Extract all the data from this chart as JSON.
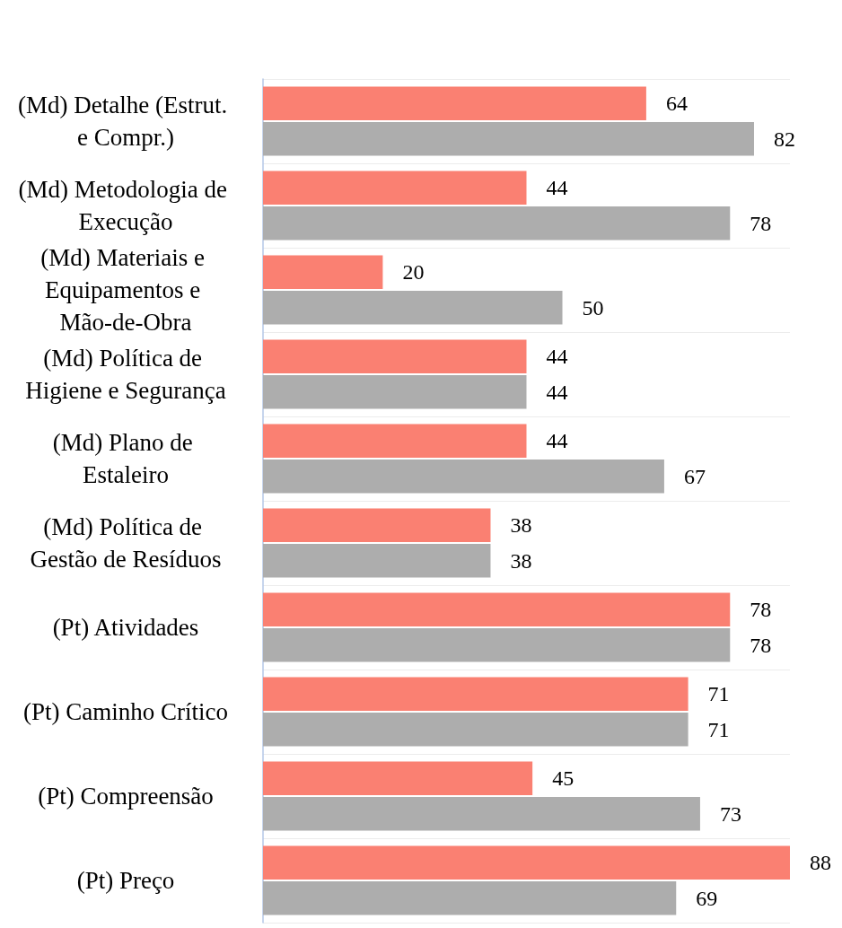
{
  "chart_data": {
    "type": "bar",
    "orientation": "horizontal",
    "categories": [
      "(Md) Detalhe (Estrut. e Compr.)",
      "(Md) Metodologia de Execução",
      "(Md) Materiais e Equipamentos e Mão-de-Obra",
      "(Md) Política de Higiene e Segurança",
      "(Md) Plano de Estaleiro",
      "(Md) Política de Gestão de Resíduos",
      "(Pt) Atividades",
      "(Pt) Caminho Crítico",
      "(Pt) Compreensão",
      "(Pt) Preço"
    ],
    "series": [
      {
        "color": "#fa8072",
        "values": [
          64,
          44,
          20,
          44,
          44,
          38,
          78,
          71,
          45,
          88
        ]
      },
      {
        "color": "#adadad",
        "values": [
          82,
          78,
          50,
          44,
          67,
          38,
          78,
          71,
          73,
          69
        ]
      }
    ],
    "data_labels": true,
    "grid": "y",
    "tick_labels": "y"
  }
}
